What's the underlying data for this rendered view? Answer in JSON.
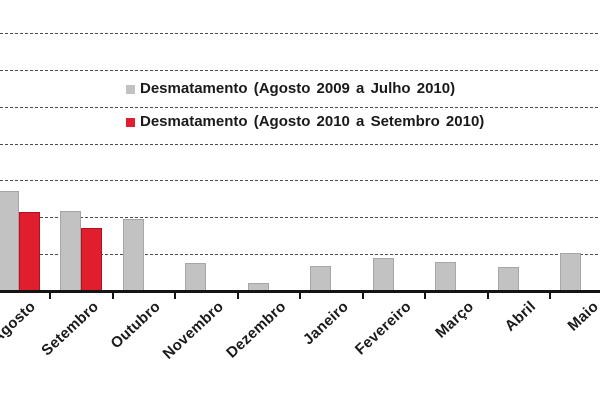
{
  "chart_data": {
    "type": "bar",
    "title": "",
    "categories": [
      "Agosto",
      "Setembro",
      "Outubro",
      "Novembro",
      "Dezembro",
      "Janeiro",
      "Fevereiro",
      "Março",
      "Abril",
      "Maio"
    ],
    "series": [
      {
        "name": "Desmatamento (Agosto 2009 a Julho 2010)",
        "color": "#c2c2c2",
        "values": [
          2.71,
          2.17,
          1.96,
          0.75,
          0.21,
          0.67,
          0.89,
          0.78,
          0.65,
          1.04
        ]
      },
      {
        "name": "Desmatamento (Agosto 2010 a Setembro 2010)",
        "color": "#e11e2d",
        "values": [
          2.14,
          1.72,
          null,
          null,
          null,
          null,
          null,
          null,
          null,
          null
        ]
      }
    ],
    "xlabel": "",
    "ylabel": "",
    "ylim": [
      0,
      7
    ],
    "value_units": "gridline units; y-axis scale labels are cropped out of the frame, horizontal gridlines are spaced 1 unit apart",
    "grid": {
      "visible": true,
      "style": "fine-dashed",
      "lines": 7,
      "color": "#4d4d4d"
    },
    "legend_position": "upper-center",
    "axis_color": "#141414",
    "text_color": "#1a1a1a",
    "background": "#ffffff",
    "x_label_rotation_deg": -43,
    "notes": "Cropped screenshot: y-axis and left part of first label 'Agosto' cut at left edge; red series only has bars for Agosto and Setembro"
  }
}
